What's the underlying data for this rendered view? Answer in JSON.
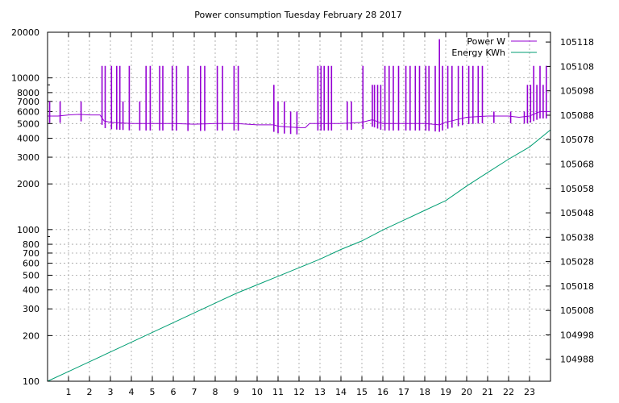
{
  "chart_data": {
    "type": "line",
    "title": "Power consumption Tuesday February 28 2017",
    "grid": true,
    "legend_placement": "top-right",
    "x": {
      "label": "",
      "range": [
        0,
        24
      ],
      "ticks": [
        1,
        2,
        3,
        4,
        5,
        6,
        7,
        8,
        9,
        10,
        11,
        12,
        13,
        14,
        15,
        16,
        17,
        18,
        19,
        20,
        21,
        22,
        23
      ]
    },
    "y_left": {
      "label": "",
      "scale": "log",
      "range": [
        100,
        20000
      ],
      "ticks": [
        100,
        200,
        300,
        400,
        500,
        600,
        700,
        800,
        1000,
        2000,
        3000,
        4000,
        5000,
        6000,
        7000,
        8000,
        10000,
        20000
      ],
      "tick_labels": [
        "100",
        "200",
        "300",
        "400",
        "500",
        "600",
        "700",
        "800",
        "1000",
        "2000",
        "3000",
        "4000",
        "5000",
        "6000",
        "7000",
        "8000",
        "10000",
        "20000"
      ]
    },
    "y_right": {
      "label": "",
      "scale": "linear",
      "range": [
        104979,
        105122
      ],
      "ticks": [
        104988,
        104998,
        105008,
        105018,
        105028,
        105038,
        105048,
        105058,
        105068,
        105078,
        105088,
        105098,
        105108,
        105118
      ],
      "tick_labels": [
        "104988",
        "104998",
        "105008",
        "105018",
        "105028",
        "105038",
        "105048",
        "105058",
        "105068",
        "105078",
        "105088",
        "105098",
        "105108",
        "105118"
      ]
    },
    "series": [
      {
        "name": "Power W",
        "color": "#9400d3",
        "axis": "left",
        "baseline": [
          [
            0.0,
            5600
          ],
          [
            0.5,
            5600
          ],
          [
            1.0,
            5700
          ],
          [
            1.5,
            5750
          ],
          [
            2.0,
            5700
          ],
          [
            2.5,
            5700
          ],
          [
            2.7,
            5200
          ],
          [
            3.0,
            5100
          ],
          [
            4.0,
            5000
          ],
          [
            5.0,
            5000
          ],
          [
            6.0,
            5000
          ],
          [
            7.0,
            4950
          ],
          [
            8.0,
            5000
          ],
          [
            9.0,
            5000
          ],
          [
            10.0,
            4900
          ],
          [
            10.8,
            4900
          ],
          [
            11.0,
            4800
          ],
          [
            12.0,
            4700
          ],
          [
            12.3,
            4700
          ],
          [
            12.5,
            5000
          ],
          [
            13.0,
            5000
          ],
          [
            14.0,
            5000
          ],
          [
            15.0,
            5100
          ],
          [
            15.5,
            5300
          ],
          [
            16.0,
            5000
          ],
          [
            17.0,
            5000
          ],
          [
            18.0,
            5000
          ],
          [
            18.7,
            4900
          ],
          [
            19.0,
            5100
          ],
          [
            20.0,
            5500
          ],
          [
            21.0,
            5600
          ],
          [
            22.0,
            5600
          ],
          [
            22.5,
            5500
          ],
          [
            23.0,
            5600
          ],
          [
            23.5,
            6000
          ],
          [
            24.0,
            6000
          ]
        ],
        "spikes": [
          [
            0.1,
            7000
          ],
          [
            0.6,
            7000
          ],
          [
            1.6,
            7000
          ],
          [
            2.6,
            12000
          ],
          [
            2.75,
            12000
          ],
          [
            3.05,
            12000
          ],
          [
            3.3,
            12000
          ],
          [
            3.45,
            12000
          ],
          [
            3.6,
            7000
          ],
          [
            3.9,
            12000
          ],
          [
            4.4,
            7000
          ],
          [
            4.7,
            12000
          ],
          [
            4.9,
            12000
          ],
          [
            5.35,
            12000
          ],
          [
            5.5,
            12000
          ],
          [
            5.95,
            12000
          ],
          [
            6.15,
            12000
          ],
          [
            6.7,
            12000
          ],
          [
            7.3,
            12000
          ],
          [
            7.5,
            12000
          ],
          [
            8.1,
            12000
          ],
          [
            8.35,
            12000
          ],
          [
            8.9,
            12000
          ],
          [
            9.1,
            12000
          ],
          [
            10.8,
            9000
          ],
          [
            11.0,
            7000
          ],
          [
            11.3,
            7000
          ],
          [
            11.6,
            6000
          ],
          [
            11.9,
            6000
          ],
          [
            12.9,
            12000
          ],
          [
            13.05,
            12000
          ],
          [
            13.2,
            12000
          ],
          [
            13.4,
            12000
          ],
          [
            13.55,
            12000
          ],
          [
            14.3,
            7000
          ],
          [
            14.5,
            7000
          ],
          [
            15.05,
            12000
          ],
          [
            15.5,
            9000
          ],
          [
            15.6,
            9000
          ],
          [
            15.75,
            9000
          ],
          [
            15.9,
            9000
          ],
          [
            16.1,
            12000
          ],
          [
            16.3,
            12000
          ],
          [
            16.5,
            12000
          ],
          [
            16.75,
            12000
          ],
          [
            17.1,
            12000
          ],
          [
            17.3,
            12000
          ],
          [
            17.55,
            12000
          ],
          [
            17.75,
            12000
          ],
          [
            18.05,
            12000
          ],
          [
            18.2,
            12000
          ],
          [
            18.5,
            12000
          ],
          [
            18.7,
            18000
          ],
          [
            18.85,
            12000
          ],
          [
            19.1,
            12000
          ],
          [
            19.3,
            12000
          ],
          [
            19.6,
            12000
          ],
          [
            19.8,
            12000
          ],
          [
            20.1,
            12000
          ],
          [
            20.3,
            12000
          ],
          [
            20.55,
            12000
          ],
          [
            20.75,
            12000
          ],
          [
            21.3,
            6000
          ],
          [
            22.1,
            6000
          ],
          [
            22.75,
            6000
          ],
          [
            22.9,
            9000
          ],
          [
            23.05,
            9000
          ],
          [
            23.2,
            12000
          ],
          [
            23.35,
            9000
          ],
          [
            23.5,
            12000
          ],
          [
            23.65,
            9000
          ],
          [
            23.8,
            12000
          ]
        ]
      },
      {
        "name": "Energy KWh",
        "color": "#009e73",
        "axis": "right",
        "points": [
          [
            0,
            104979
          ],
          [
            1,
            104983
          ],
          [
            2,
            104987
          ],
          [
            3,
            104991
          ],
          [
            4,
            104995
          ],
          [
            5,
            104999
          ],
          [
            6,
            105003
          ],
          [
            7,
            105007
          ],
          [
            8,
            105011
          ],
          [
            9,
            105015
          ],
          [
            10,
            105018.5
          ],
          [
            11,
            105022
          ],
          [
            12,
            105025.5
          ],
          [
            13,
            105029
          ],
          [
            14,
            105033
          ],
          [
            15,
            105036.5
          ],
          [
            16,
            105041
          ],
          [
            17,
            105045
          ],
          [
            18,
            105049
          ],
          [
            19,
            105053
          ],
          [
            20,
            105059
          ],
          [
            21,
            105064.5
          ],
          [
            22,
            105070
          ],
          [
            23,
            105075
          ],
          [
            24,
            105082
          ]
        ]
      }
    ]
  }
}
